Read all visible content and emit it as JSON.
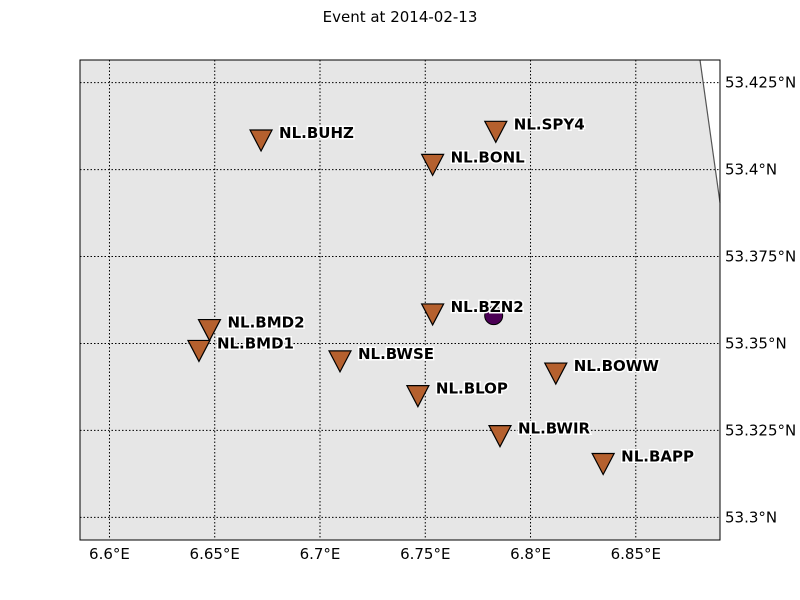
{
  "title": "Event at 2014-02-13",
  "colors": {
    "land": "#e6e6e6",
    "station": "#b5602e",
    "event": "#4b0055",
    "grid": "#000000",
    "coastline": "#555555",
    "water": "#ffffff"
  },
  "map": {
    "lon_range": [
      6.586,
      6.89
    ],
    "lat_range": [
      53.2935,
      53.4315
    ],
    "lon_ticks": [
      6.6,
      6.65,
      6.7,
      6.75,
      6.8,
      6.85
    ],
    "lat_ticks": [
      53.3,
      53.325,
      53.35,
      53.375,
      53.4,
      53.425
    ],
    "lon_tick_labels": [
      "6.6°E",
      "6.65°E",
      "6.7°E",
      "6.75°E",
      "6.8°E",
      "6.85°E"
    ],
    "lat_tick_labels": [
      "53.3°N",
      "53.325°N",
      "53.35°N",
      "53.375°N",
      "53.4°N",
      "53.425°N"
    ],
    "grid": "dotted"
  },
  "event": {
    "lon": 6.7825,
    "lat": 53.358,
    "marker": "circle"
  },
  "stations": [
    {
      "name": "NL.BUHZ",
      "lon": 6.672,
      "lat": 53.4085
    },
    {
      "name": "NL.SPY4",
      "lon": 6.7835,
      "lat": 53.411
    },
    {
      "name": "NL.BONL",
      "lon": 6.7535,
      "lat": 53.4015
    },
    {
      "name": "NL.BZN2",
      "lon": 6.7535,
      "lat": 53.3585
    },
    {
      "name": "NL.BMD2",
      "lon": 6.6475,
      "lat": 53.354
    },
    {
      "name": "NL.BMD1",
      "lon": 6.6425,
      "lat": 53.348
    },
    {
      "name": "NL.BWSE",
      "lon": 6.7095,
      "lat": 53.345
    },
    {
      "name": "NL.BOWW",
      "lon": 6.812,
      "lat": 53.3415
    },
    {
      "name": "NL.BLOP",
      "lon": 6.7465,
      "lat": 53.335
    },
    {
      "name": "NL.BWIR",
      "lon": 6.7855,
      "lat": 53.3235
    },
    {
      "name": "NL.BAPP",
      "lon": 6.8345,
      "lat": 53.3155
    }
  ],
  "coastline": [
    {
      "lon": 6.8805,
      "lat": 53.4315
    },
    {
      "lon": 6.89,
      "lat": 53.3905
    }
  ]
}
